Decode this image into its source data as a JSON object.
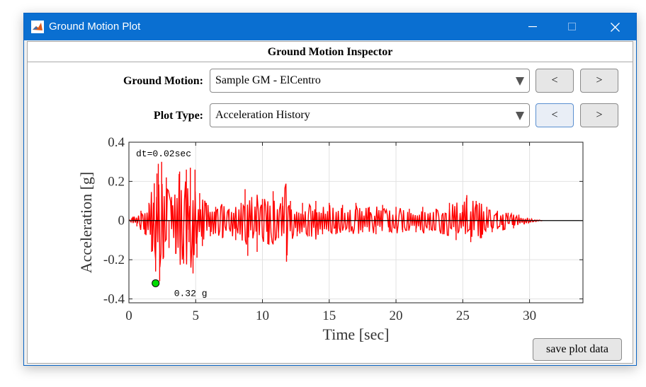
{
  "window": {
    "title": "Ground Motion Plot"
  },
  "panel": {
    "header": "Ground Motion Inspector"
  },
  "controls": {
    "ground_motion_label": "Ground Motion:",
    "ground_motion_value": "Sample GM - ElCentro",
    "plot_type_label": "Plot Type:",
    "plot_type_value": "Acceleration History",
    "prev_label": "<",
    "next_label": ">",
    "save_label": "save plot data"
  },
  "chart_data": {
    "type": "line",
    "xlabel": "Time [sec]",
    "ylabel": "Acceleration [g]",
    "xlim": [
      0,
      34
    ],
    "ylim": [
      -0.42,
      0.4
    ],
    "xticks": [
      0,
      5,
      10,
      15,
      20,
      25,
      30
    ],
    "yticks": [
      0.4,
      0.2,
      0,
      -0.2,
      -0.4
    ],
    "ytick_labels": [
      "0.4",
      "0.2",
      "0",
      "-0.2",
      "-0.4"
    ],
    "grid": true,
    "series": [
      {
        "color": "#ff0000",
        "dt": 0.02,
        "description": "ground acceleration time history",
        "envelope_points": [
          [
            0,
            0
          ],
          [
            0.3,
            0.02
          ],
          [
            0.6,
            -0.03
          ],
          [
            0.9,
            0.05
          ],
          [
            1.2,
            -0.07
          ],
          [
            1.5,
            0.09
          ],
          [
            1.7,
            -0.16
          ],
          [
            1.9,
            0.19
          ],
          [
            2.0,
            -0.26
          ],
          [
            2.1,
            0.24
          ],
          [
            2.2,
            0.29
          ],
          [
            2.3,
            -0.31
          ],
          [
            2.45,
            0.3
          ],
          [
            2.6,
            -0.19
          ],
          [
            2.8,
            0.22
          ],
          [
            3.0,
            -0.14
          ],
          [
            3.2,
            0.12
          ],
          [
            3.5,
            -0.17
          ],
          [
            3.8,
            0.25
          ],
          [
            4.1,
            -0.22
          ],
          [
            4.3,
            0.26
          ],
          [
            4.5,
            -0.11
          ],
          [
            4.6,
            0.27
          ],
          [
            4.8,
            -0.27
          ],
          [
            4.95,
            0.26
          ],
          [
            5.1,
            -0.19
          ],
          [
            5.3,
            0.14
          ],
          [
            5.5,
            -0.13
          ],
          [
            5.8,
            0.09
          ],
          [
            6.1,
            -0.08
          ],
          [
            6.5,
            0.07
          ],
          [
            7.0,
            -0.09
          ],
          [
            7.5,
            0.06
          ],
          [
            8.0,
            -0.1
          ],
          [
            8.4,
            0.09
          ],
          [
            8.7,
            0.16
          ],
          [
            8.9,
            -0.18
          ],
          [
            9.2,
            0.12
          ],
          [
            9.6,
            -0.16
          ],
          [
            10.0,
            0.11
          ],
          [
            10.4,
            -0.12
          ],
          [
            10.8,
            0.15
          ],
          [
            11.2,
            -0.09
          ],
          [
            11.5,
            0.12
          ],
          [
            11.8,
            -0.21
          ],
          [
            12.1,
            0.1
          ],
          [
            12.6,
            -0.08
          ],
          [
            13.0,
            0.09
          ],
          [
            13.5,
            -0.08
          ],
          [
            14.0,
            0.1
          ],
          [
            14.5,
            -0.07
          ],
          [
            15.0,
            0.09
          ],
          [
            15.5,
            -0.07
          ],
          [
            16.0,
            0.08
          ],
          [
            16.5,
            -0.06
          ],
          [
            17.0,
            0.09
          ],
          [
            17.5,
            -0.06
          ],
          [
            18.0,
            0.07
          ],
          [
            18.5,
            -0.07
          ],
          [
            19.0,
            0.08
          ],
          [
            19.5,
            -0.06
          ],
          [
            20.0,
            0.07
          ],
          [
            20.5,
            -0.06
          ],
          [
            21.0,
            0.06
          ],
          [
            21.5,
            -0.06
          ],
          [
            22.0,
            0.07
          ],
          [
            22.5,
            -0.05
          ],
          [
            23.0,
            0.06
          ],
          [
            23.5,
            -0.07
          ],
          [
            24.0,
            0.09
          ],
          [
            24.5,
            -0.1
          ],
          [
            25.0,
            0.08
          ],
          [
            25.3,
            0.13
          ],
          [
            25.6,
            -0.11
          ],
          [
            26.0,
            0.1
          ],
          [
            26.4,
            -0.09
          ],
          [
            26.8,
            0.07
          ],
          [
            27.2,
            -0.06
          ],
          [
            27.6,
            0.05
          ],
          [
            28.0,
            -0.05
          ],
          [
            28.4,
            0.04
          ],
          [
            28.8,
            -0.04
          ],
          [
            29.2,
            0.03
          ],
          [
            29.6,
            -0.02
          ],
          [
            30.0,
            0.01
          ],
          [
            31.0,
            0.0
          ]
        ]
      }
    ],
    "annotations": {
      "dt_text": "dt=0.02sec",
      "peak_text": "0.32 g",
      "peak_marker": {
        "x": 2.0,
        "y": -0.32,
        "color": "#00dd00"
      }
    }
  }
}
